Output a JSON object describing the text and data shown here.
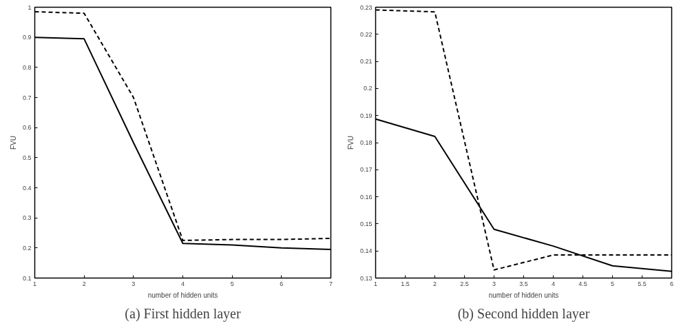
{
  "chart_data": [
    {
      "type": "line",
      "title": "(a) First hidden layer",
      "xlabel": "number of hidden units",
      "ylabel": "FVU",
      "x": [
        1,
        2,
        3,
        4,
        5,
        6,
        7
      ],
      "series": [
        {
          "color": "#000000",
          "line_style": "solid",
          "values": [
            0.9,
            0.895,
            0.55,
            0.215,
            0.21,
            0.2,
            0.195
          ]
        },
        {
          "color": "#000000",
          "line_style": "dashed",
          "values": [
            0.985,
            0.98,
            0.7,
            0.225,
            0.228,
            0.228,
            0.232
          ]
        }
      ],
      "xlim": [
        1,
        7
      ],
      "xticks": [
        1,
        2,
        3,
        4,
        5,
        6,
        7
      ],
      "ylim": [
        0.1,
        1
      ],
      "yticks": [
        0.1,
        0.2,
        0.3,
        0.4,
        0.5,
        0.6,
        0.7,
        0.8,
        0.9,
        1
      ],
      "grid": false,
      "marker": "none"
    },
    {
      "type": "line",
      "title": "(b) Second hidden layer",
      "xlabel": "number of hidden units",
      "ylabel": "FVU",
      "x": [
        1,
        2,
        3,
        4,
        5,
        6
      ],
      "series": [
        {
          "color": "#000000",
          "line_style": "solid",
          "values": [
            0.1887,
            0.1823,
            0.148,
            0.1418,
            0.1345,
            0.1325
          ]
        },
        {
          "color": "#000000",
          "line_style": "dashed",
          "values": [
            0.229,
            0.2283,
            0.133,
            0.1385,
            0.1385,
            0.1385
          ]
        }
      ],
      "xlim": [
        1,
        6
      ],
      "xticks": [
        1,
        1.5,
        2,
        2.5,
        3,
        3.5,
        4,
        4.5,
        5,
        5.5,
        6
      ],
      "ylim": [
        0.13,
        0.23
      ],
      "yticks": [
        0.13,
        0.14,
        0.15,
        0.16,
        0.17,
        0.18,
        0.19,
        0.2,
        0.21,
        0.22,
        0.23
      ],
      "grid": false,
      "marker": "none"
    }
  ]
}
